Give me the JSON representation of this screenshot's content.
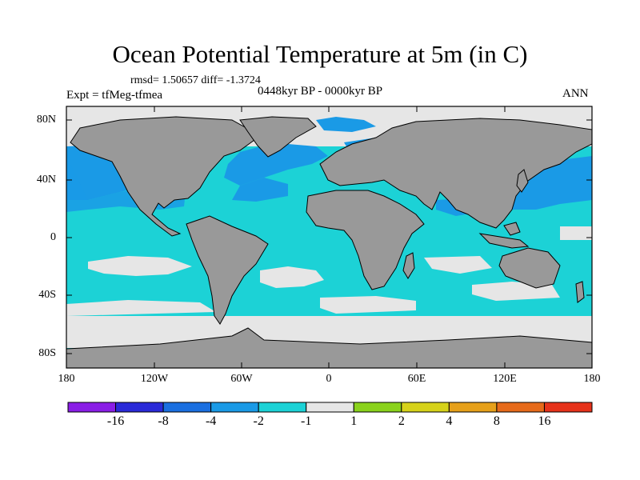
{
  "title": "Ocean Potential Temperature at 5m (in C)",
  "stats": "rmsd= 1.50657 diff= -1.3724",
  "experiment": "Expt = tfMeg-tfmea",
  "period": "0448kyr BP - 0000kyr BP",
  "season": "ANN",
  "axes": {
    "y_ticks": [
      "80N",
      "40N",
      "0",
      "40S",
      "80S"
    ],
    "x_ticks": [
      "180",
      "120W",
      "60W",
      "0",
      "60E",
      "120E",
      "180"
    ]
  },
  "colorbar": {
    "labels": [
      "-16",
      "-8",
      "-4",
      "-2",
      "-1",
      "1",
      "2",
      "4",
      "8",
      "16"
    ],
    "colors": [
      "#8a1ee6",
      "#2a2ad8",
      "#1a6fe0",
      "#1a9ae6",
      "#1cd2d6",
      "#e6e6e6",
      "#8ad21c",
      "#d6d21a",
      "#e6a01a",
      "#e66a1a",
      "#e6321a"
    ]
  },
  "colors": {
    "land": "#999999",
    "ocean_default": "#1cd2d6",
    "ocean_cool": "#1a9ae6",
    "ocean_neutral": "#e6e6e6"
  }
}
